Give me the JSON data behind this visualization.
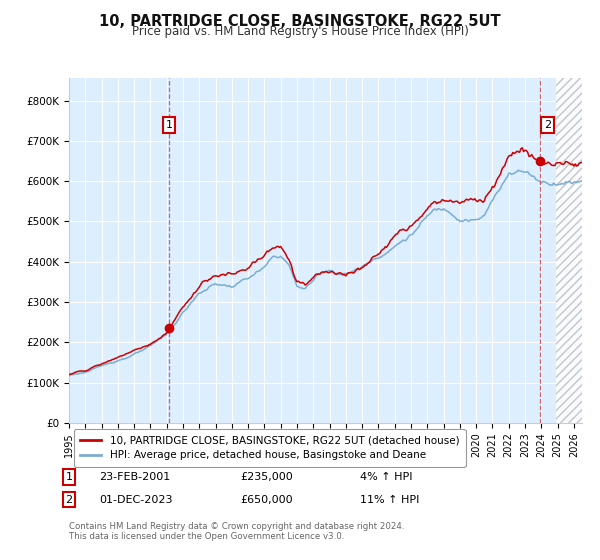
{
  "title": "10, PARTRIDGE CLOSE, BASINGSTOKE, RG22 5UT",
  "subtitle": "Price paid vs. HM Land Registry's House Price Index (HPI)",
  "xmin": 1995.0,
  "xmax": 2026.5,
  "ymin": 0,
  "ymax": 850000,
  "yticks": [
    0,
    100000,
    200000,
    300000,
    400000,
    500000,
    600000,
    700000,
    800000
  ],
  "ytick_labels": [
    "£0",
    "£100K",
    "£200K",
    "£300K",
    "£400K",
    "£500K",
    "£600K",
    "£700K",
    "£800K"
  ],
  "xticks": [
    1995,
    1996,
    1997,
    1998,
    1999,
    2000,
    2001,
    2002,
    2003,
    2004,
    2005,
    2006,
    2007,
    2008,
    2009,
    2010,
    2011,
    2012,
    2013,
    2014,
    2015,
    2016,
    2017,
    2018,
    2019,
    2020,
    2021,
    2022,
    2023,
    2024,
    2025,
    2026
  ],
  "hpi_color": "#7aadd4",
  "price_color": "#cc0000",
  "bg_color": "#ddeeff",
  "grid_color": "#ffffff",
  "sale1_x": 2001.145,
  "sale1_y": 235000,
  "sale2_x": 2023.917,
  "sale2_y": 650000,
  "legend1": "10, PARTRIDGE CLOSE, BASINGSTOKE, RG22 5UT (detached house)",
  "legend2": "HPI: Average price, detached house, Basingstoke and Deane",
  "note1_date": "23-FEB-2001",
  "note1_price": "£235,000",
  "note1_hpi": "4% ↑ HPI",
  "note2_date": "01-DEC-2023",
  "note2_price": "£650,000",
  "note2_hpi": "11% ↑ HPI",
  "footer": "Contains HM Land Registry data © Crown copyright and database right 2024.\nThis data is licensed under the Open Government Licence v3.0.",
  "future_xstart": 2024.917
}
